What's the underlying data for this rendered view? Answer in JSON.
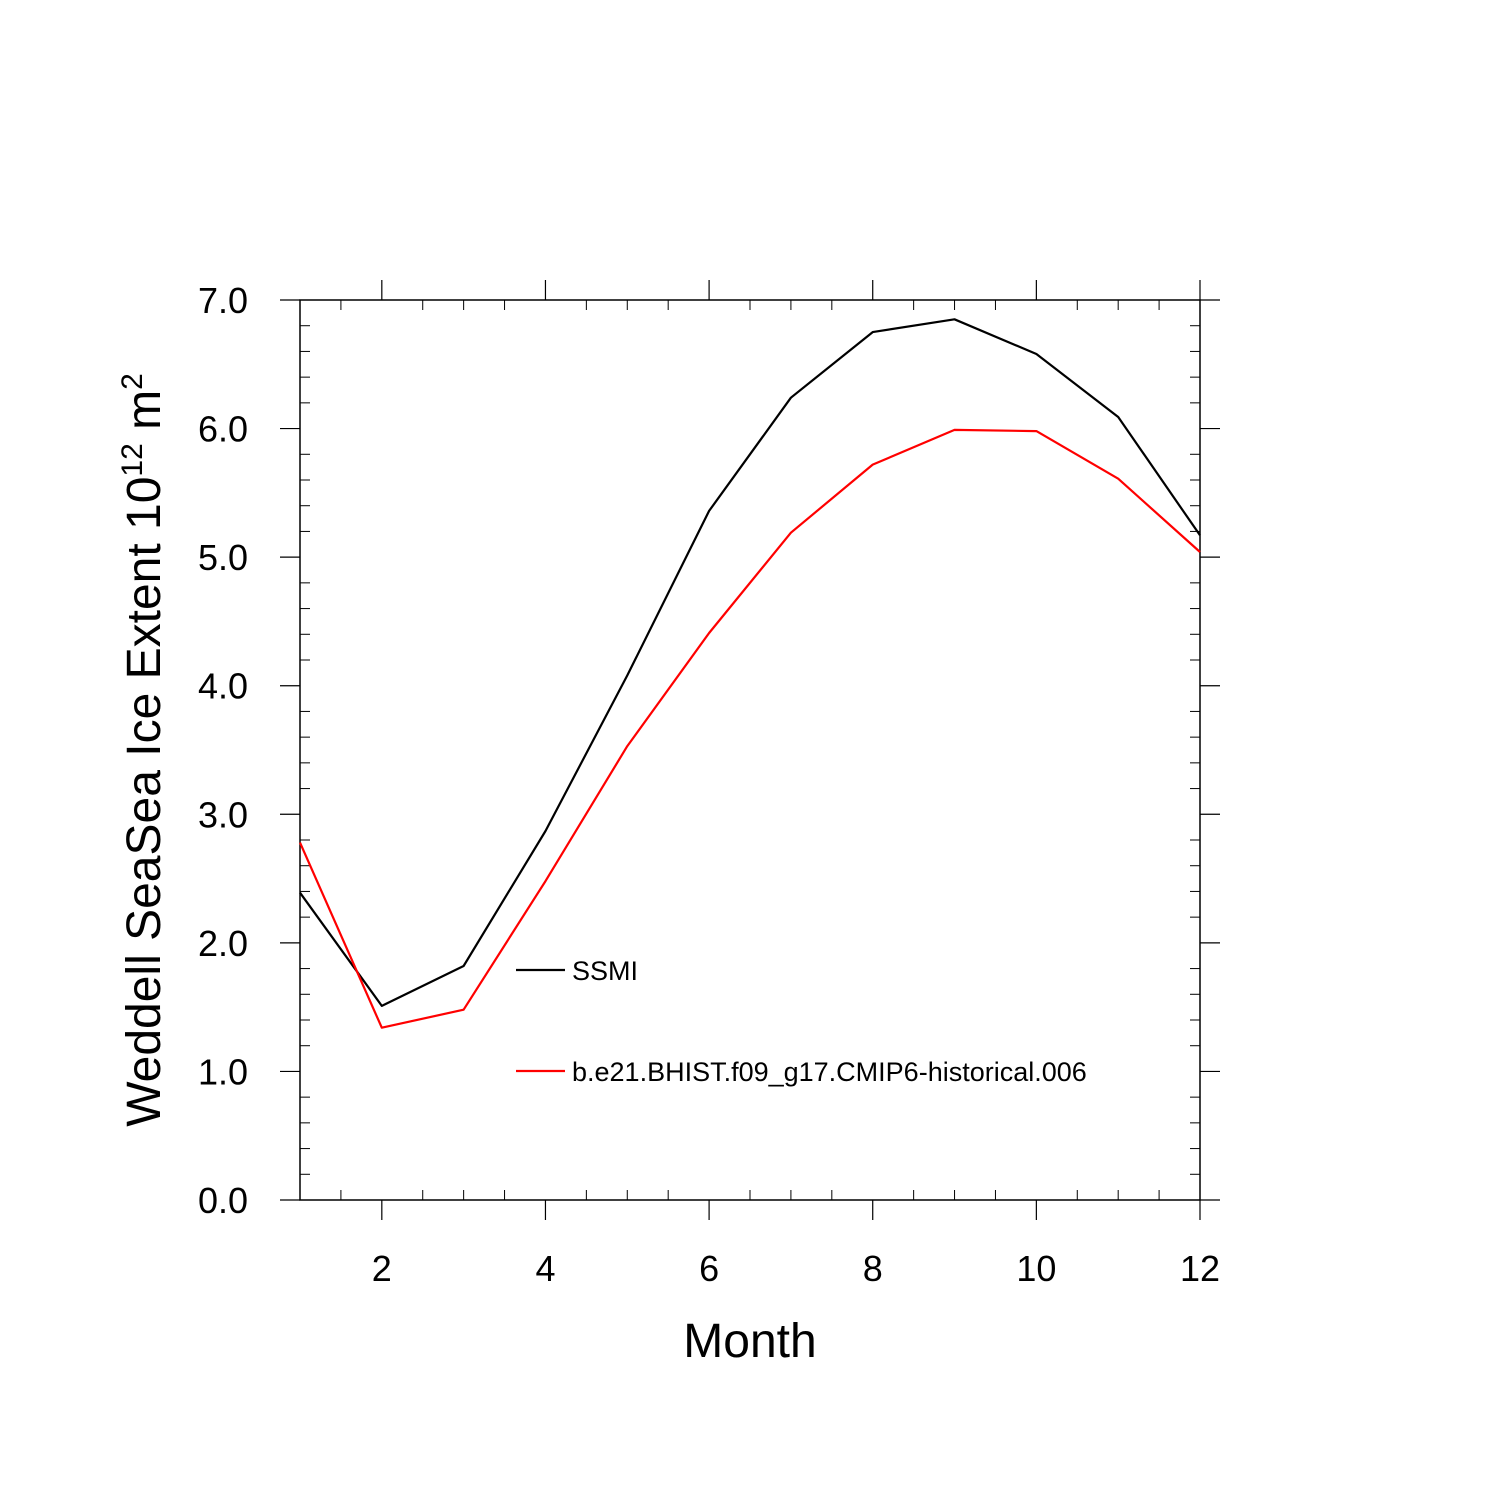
{
  "chart_data": {
    "type": "line",
    "xlabel": "Month",
    "ylabel": {
      "main": "Weddell SeaSea Ice Extent 10",
      "exponent": "12",
      "unit": " m",
      "unit_exponent": "2"
    },
    "xlim": [
      1,
      12
    ],
    "ylim": [
      0,
      7
    ],
    "x_ticks": [
      2,
      4,
      6,
      8,
      10,
      12
    ],
    "x_tick_labels": [
      "2",
      "4",
      "6",
      "8",
      "10",
      "12"
    ],
    "y_ticks": [
      0,
      1,
      2,
      3,
      4,
      5,
      6,
      7
    ],
    "y_tick_labels": [
      "0.0",
      "1.0",
      "2.0",
      "3.0",
      "4.0",
      "5.0",
      "6.0",
      "7.0"
    ],
    "grid": false,
    "legend_position": "inside, lower-middle",
    "x": [
      1,
      2,
      3,
      4,
      5,
      6,
      7,
      8,
      9,
      10,
      11,
      12
    ],
    "series": [
      {
        "name": "SSMI",
        "color": "#000000",
        "values": [
          2.39,
          1.51,
          1.82,
          2.87,
          4.08,
          5.36,
          6.24,
          6.75,
          6.85,
          6.58,
          6.09,
          5.17
        ]
      },
      {
        "name": "b.e21.BHIST.f09_g17.CMIP6-historical.006",
        "color": "#ff0000",
        "values": [
          2.78,
          1.34,
          1.48,
          2.48,
          3.53,
          4.41,
          5.19,
          5.72,
          5.99,
          5.98,
          5.61,
          5.04
        ]
      }
    ]
  }
}
